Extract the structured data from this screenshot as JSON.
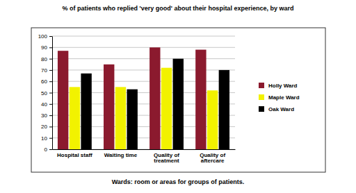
{
  "chart_data": {
    "type": "bar",
    "title": "% of patients who replied 'very good' about their hospital experience, by ward",
    "categories": [
      "Hospital staff",
      "Waiting time",
      "Quality of treatment",
      "Quality of aftercare"
    ],
    "series": [
      {
        "name": "Holly Ward",
        "color": "#8b1a2e",
        "values": [
          87,
          75,
          90,
          88
        ]
      },
      {
        "name": "Maple Ward",
        "color": "#f2f200",
        "values": [
          55,
          55,
          72,
          52
        ]
      },
      {
        "name": "Oak Ward",
        "color": "#000000",
        "values": [
          67,
          53,
          80,
          70
        ]
      }
    ],
    "ylim": [
      0,
      100
    ],
    "yticks": [
      0,
      10,
      20,
      30,
      40,
      50,
      60,
      70,
      80,
      90,
      100
    ],
    "grid": true,
    "legend": "right",
    "annotations": [
      "Wards: room or areas for groups of patients."
    ]
  }
}
